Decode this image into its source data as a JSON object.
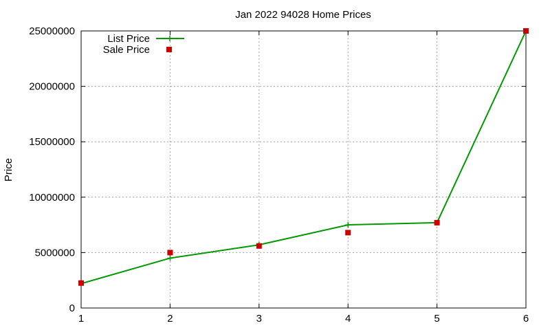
{
  "chart_data": {
    "type": "line",
    "title": "Jan 2022 94028 Home Prices",
    "xlabel": "",
    "ylabel": "Price",
    "x": [
      1,
      2,
      3,
      4,
      5,
      6
    ],
    "xlim": [
      1,
      6
    ],
    "ylim": [
      0,
      25000000
    ],
    "xticks": [
      "1",
      "2",
      "3",
      "4",
      "5",
      "6"
    ],
    "yticks": [
      0,
      5000000,
      10000000,
      15000000,
      20000000,
      25000000
    ],
    "grid": true,
    "legend_position": "top-left",
    "series": [
      {
        "name": "List Price",
        "style": "line-with-plus-markers",
        "color": "#009900",
        "values": [
          2200000,
          4500000,
          5700000,
          7500000,
          7700000,
          25000000
        ]
      },
      {
        "name": "Sale Price",
        "style": "square-markers",
        "color": "#cc0000",
        "values": [
          2250000,
          5000000,
          5600000,
          6800000,
          7700000,
          25000000
        ]
      }
    ]
  }
}
